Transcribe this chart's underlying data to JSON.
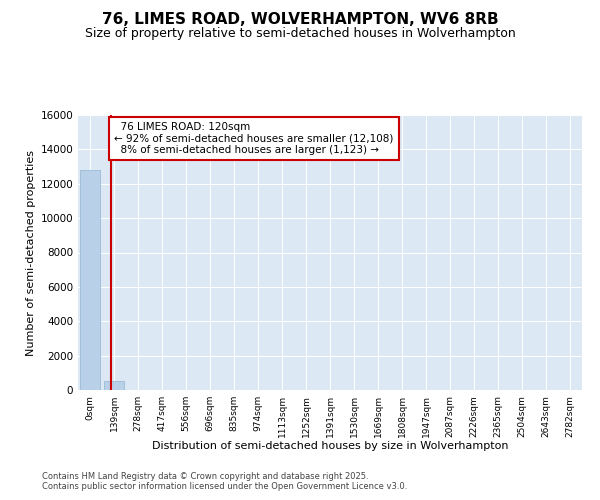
{
  "title": "76, LIMES ROAD, WOLVERHAMPTON, WV6 8RB",
  "subtitle": "Size of property relative to semi-detached houses in Wolverhampton",
  "xlabel": "Distribution of semi-detached houses by size in Wolverhampton",
  "ylabel": "Number of semi-detached properties",
  "property_label": "76 LIMES ROAD: 120sqm",
  "pct_smaller": 92,
  "count_smaller": 12108,
  "pct_larger": 8,
  "count_larger": 1123,
  "bar_categories": [
    "0sqm",
    "139sqm",
    "278sqm",
    "417sqm",
    "556sqm",
    "696sqm",
    "835sqm",
    "974sqm",
    "1113sqm",
    "1252sqm",
    "1391sqm",
    "1530sqm",
    "1669sqm",
    "1808sqm",
    "1947sqm",
    "2087sqm",
    "2226sqm",
    "2365sqm",
    "2504sqm",
    "2643sqm",
    "2782sqm"
  ],
  "bar_heights": [
    12800,
    520,
    0,
    0,
    0,
    0,
    0,
    0,
    0,
    0,
    0,
    0,
    0,
    0,
    0,
    0,
    0,
    0,
    0,
    0,
    0
  ],
  "bar_color": "#b8d0e8",
  "bar_edge_color": "#92b4d2",
  "vline_color": "#cc0000",
  "annotation_box_color": "#cc0000",
  "bg_color": "#dce9f5",
  "grid_color": "#ffffff",
  "ylim": [
    0,
    16000
  ],
  "yticks": [
    0,
    2000,
    4000,
    6000,
    8000,
    10000,
    12000,
    14000,
    16000
  ],
  "title_fontsize": 11,
  "subtitle_fontsize": 9,
  "footer1": "Contains HM Land Registry data © Crown copyright and database right 2025.",
  "footer2": "Contains public sector information licensed under the Open Government Licence v3.0."
}
